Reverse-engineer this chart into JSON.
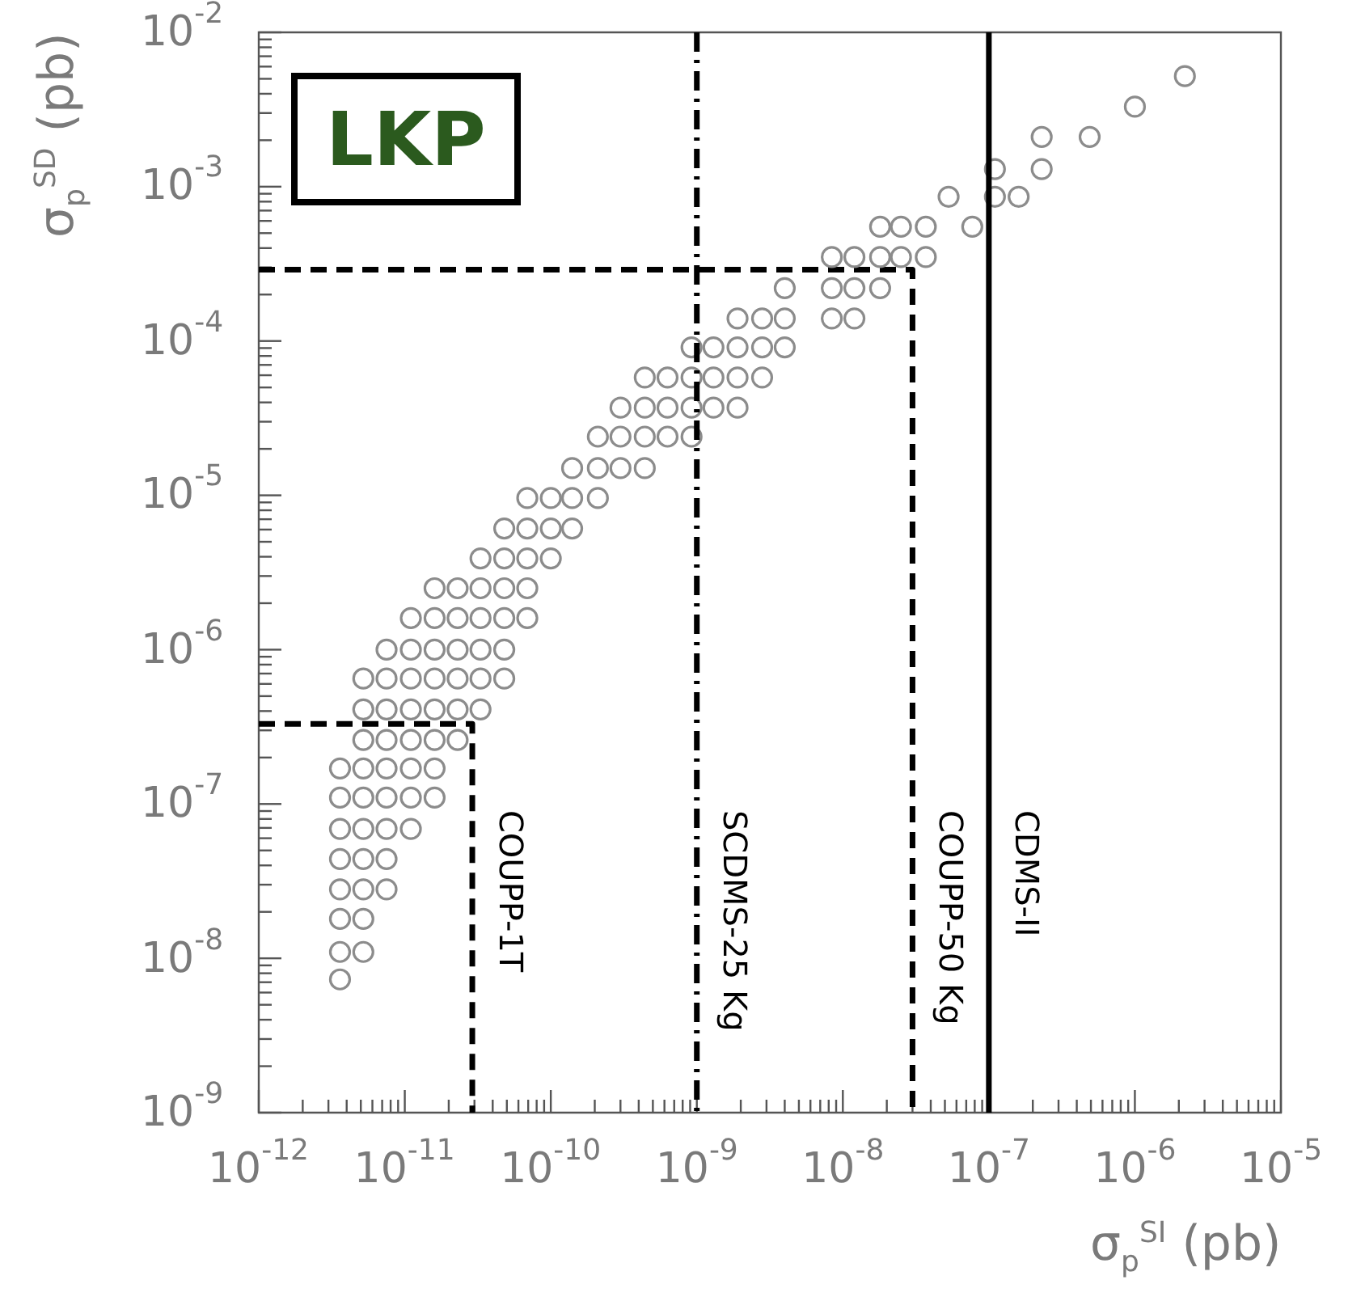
{
  "chart_data": {
    "type": "scatter",
    "title": "LKP",
    "xlabel": "σ$_{p}$$^{SI}$ (pb)",
    "ylabel": "σ$_{p}$$^{SD}$ (pb)",
    "log": "xy",
    "grid": false,
    "legend": false,
    "marker": "circle",
    "xlim": [
      1e-12,
      1e-05
    ],
    "ylim": [
      1e-09,
      0.01
    ],
    "xticks": [
      {
        "value": 1e-12,
        "label": "10$^{-12}$"
      },
      {
        "value": 1e-11,
        "label": "10$^{-11}$"
      },
      {
        "value": 1e-10,
        "label": "10$^{-10}$"
      },
      {
        "value": 1e-09,
        "label": "10$^{-9}$"
      },
      {
        "value": 1e-08,
        "label": "10$^{-8}$"
      },
      {
        "value": 1e-07,
        "label": "10$^{-7}$"
      },
      {
        "value": 1e-06,
        "label": "10$^{-6}$"
      },
      {
        "value": 1e-05,
        "label": "10$^{-5}$"
      }
    ],
    "yticks": [
      {
        "value": 1e-09,
        "label": "10$^{-9}$"
      },
      {
        "value": 1e-08,
        "label": "10$^{-8}$"
      },
      {
        "value": 1e-07,
        "label": "10$^{-7}$"
      },
      {
        "value": 1e-06,
        "label": "10$^{-6}$"
      },
      {
        "value": 1e-05,
        "label": "10$^{-5}$"
      },
      {
        "value": 0.0001,
        "label": "10$^{-4}$"
      },
      {
        "value": 0.001,
        "label": "10$^{-3}$"
      },
      {
        "value": 0.01,
        "label": "10$^{-2}$"
      }
    ],
    "series": [
      {
        "color": "#8c8c8c",
        "x": [
          3.6e-12,
          3.6e-12,
          5.2e-12,
          3.6e-12,
          5.2e-12,
          3.6e-12,
          5.2e-12,
          7.5e-12,
          3.6e-12,
          5.2e-12,
          7.5e-12,
          3.6e-12,
          5.2e-12,
          7.5e-12,
          1.1e-11,
          3.6e-12,
          5.2e-12,
          7.5e-12,
          1.1e-11,
          1.6e-11,
          3.6e-12,
          5.2e-12,
          7.5e-12,
          1.1e-11,
          1.6e-11,
          5.2e-12,
          7.5e-12,
          1.1e-11,
          1.6e-11,
          2.3e-11,
          5.2e-12,
          7.5e-12,
          1.1e-11,
          1.6e-11,
          2.3e-11,
          3.3e-11,
          5.2e-12,
          7.5e-12,
          1.1e-11,
          1.6e-11,
          2.3e-11,
          3.3e-11,
          4.8e-11,
          7.5e-12,
          1.1e-11,
          1.6e-11,
          2.3e-11,
          3.3e-11,
          4.8e-11,
          1.1e-11,
          1.6e-11,
          2.3e-11,
          3.3e-11,
          4.8e-11,
          6.9e-11,
          1.6e-11,
          2.3e-11,
          3.3e-11,
          4.8e-11,
          6.9e-11,
          3.3e-11,
          4.8e-11,
          6.9e-11,
          1e-10,
          4.8e-11,
          6.9e-11,
          1e-10,
          1.4e-10,
          6.9e-11,
          1e-10,
          1.4e-10,
          2.1e-10,
          1.4e-10,
          2.1e-10,
          3e-10,
          4.4e-10,
          2.1e-10,
          3e-10,
          4.4e-10,
          6.3e-10,
          9.2e-10,
          3e-10,
          4.4e-10,
          6.3e-10,
          9.2e-10,
          1.3e-09,
          1.9e-09,
          4.4e-10,
          6.3e-10,
          9.2e-10,
          1.3e-09,
          1.9e-09,
          2.8e-09,
          9.2e-10,
          1.3e-09,
          1.9e-09,
          2.8e-09,
          4e-09,
          1.9e-09,
          2.8e-09,
          4e-09,
          8.4e-09,
          1.2e-08,
          4e-09,
          8.4e-09,
          1.2e-08,
          1.8e-08,
          8.4e-09,
          1.2e-08,
          1.8e-08,
          2.5e-08,
          3.7e-08,
          1.8e-08,
          2.5e-08,
          3.7e-08,
          7.7e-08,
          5.3e-08,
          1.1e-07,
          1.6e-07,
          1.1e-07,
          2.3e-07,
          2.3e-07,
          4.9e-07,
          1e-06,
          2.2e-06
        ],
        "values": [
          7.3e-09,
          1.1e-08,
          1.1e-08,
          1.8e-08,
          1.8e-08,
          2.8e-08,
          2.8e-08,
          2.8e-08,
          4.4e-08,
          4.4e-08,
          4.4e-08,
          6.9e-08,
          6.9e-08,
          6.9e-08,
          6.9e-08,
          1.1e-07,
          1.1e-07,
          1.1e-07,
          1.1e-07,
          1.1e-07,
          1.7e-07,
          1.7e-07,
          1.7e-07,
          1.7e-07,
          1.7e-07,
          2.6e-07,
          2.6e-07,
          2.6e-07,
          2.6e-07,
          2.6e-07,
          4.1e-07,
          4.1e-07,
          4.1e-07,
          4.1e-07,
          4.1e-07,
          4.1e-07,
          6.5e-07,
          6.5e-07,
          6.5e-07,
          6.5e-07,
          6.5e-07,
          6.5e-07,
          6.5e-07,
          1e-06,
          1e-06,
          1e-06,
          1e-06,
          1e-06,
          1e-06,
          1.6e-06,
          1.6e-06,
          1.6e-06,
          1.6e-06,
          1.6e-06,
          1.6e-06,
          2.5e-06,
          2.5e-06,
          2.5e-06,
          2.5e-06,
          2.5e-06,
          3.9e-06,
          3.9e-06,
          3.9e-06,
          3.9e-06,
          6.1e-06,
          6.1e-06,
          6.1e-06,
          6.1e-06,
          9.6e-06,
          9.6e-06,
          9.6e-06,
          9.6e-06,
          1.5e-05,
          1.5e-05,
          1.5e-05,
          1.5e-05,
          2.4e-05,
          2.4e-05,
          2.4e-05,
          2.4e-05,
          2.4e-05,
          3.7e-05,
          3.7e-05,
          3.7e-05,
          3.7e-05,
          3.7e-05,
          3.7e-05,
          5.8e-05,
          5.8e-05,
          5.8e-05,
          5.8e-05,
          5.8e-05,
          5.8e-05,
          9.1e-05,
          9.1e-05,
          9.1e-05,
          9.1e-05,
          9.1e-05,
          0.00014,
          0.00014,
          0.00014,
          0.00014,
          0.00014,
          0.00022,
          0.00022,
          0.00022,
          0.00022,
          0.00035,
          0.00035,
          0.00035,
          0.00035,
          0.00035,
          0.00055,
          0.00055,
          0.00055,
          0.00055,
          0.00086,
          0.00086,
          0.00086,
          0.0013,
          0.0013,
          0.0021,
          0.0021,
          0.0033,
          0.0052
        ]
      },
      {
        "type": "line",
        "name": "COUPP-1T",
        "color": "#000000",
        "line_style": "dashed",
        "marker": "none",
        "x": [
          1e-12,
          2.9e-11,
          2.9e-11
        ],
        "values": [
          3.3e-07,
          3.3e-07,
          1e-09
        ]
      },
      {
        "type": "line",
        "name": "COUPP-50 Kg",
        "color": "#000000",
        "line_style": "dashed",
        "marker": "none",
        "x": [
          1e-12,
          3e-08,
          3e-08
        ],
        "values": [
          0.00029,
          0.00029,
          1e-09
        ]
      }
    ],
    "ref_lines": [
      {
        "axis": "x",
        "value": 1e-09,
        "label": "SCDMS-25 Kg",
        "color": "#000000",
        "line_style": "dashdot"
      },
      {
        "axis": "x",
        "value": 1e-07,
        "label": "CDMS-II",
        "color": "#000000",
        "line_style": "solid"
      }
    ]
  }
}
